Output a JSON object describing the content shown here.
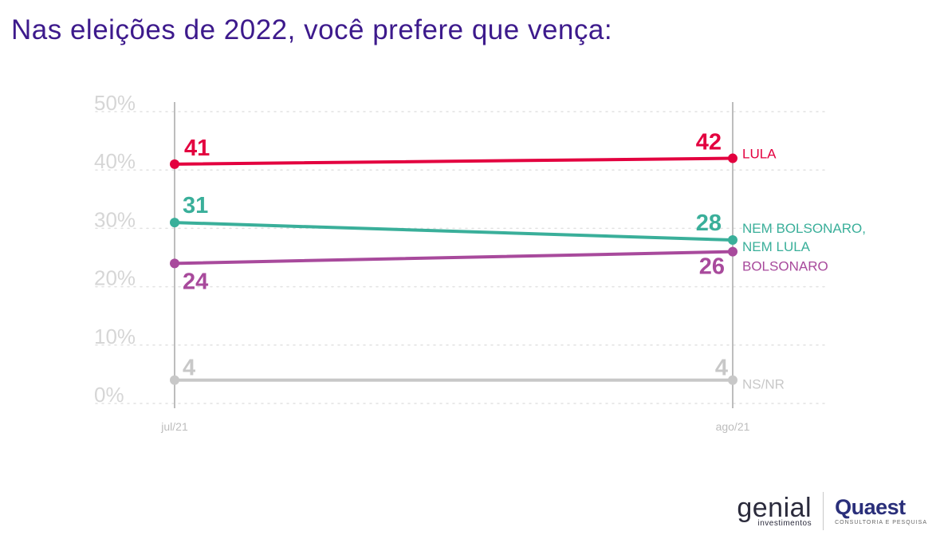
{
  "title": "Nas eleições de 2022, você prefere que vença:",
  "chart_data": {
    "type": "line",
    "categories": [
      "jul/21",
      "ago/21"
    ],
    "ylim": [
      0,
      50
    ],
    "yticks": [
      0,
      10,
      20,
      30,
      40,
      50
    ],
    "ytick_labels": [
      "0%",
      "10%",
      "20%",
      "30%",
      "40%",
      "50%"
    ],
    "grid": true,
    "series": [
      {
        "name": "LULA",
        "values": [
          41,
          42
        ],
        "color": "#e3003f",
        "labels": [
          "41",
          "42"
        ]
      },
      {
        "name": "NEM BOLSONARO, NEM LULA",
        "name_lines": [
          "NEM BOLSONARO,",
          "NEM LULA"
        ],
        "values": [
          31,
          28
        ],
        "color": "#3aaf9a",
        "labels": [
          "31",
          "28"
        ]
      },
      {
        "name": "BOLSONARO",
        "values": [
          24,
          26
        ],
        "color": "#a84a9c",
        "labels": [
          "24",
          "26"
        ]
      },
      {
        "name": "NS/NR",
        "values": [
          4,
          4
        ],
        "color": "#c8c8c8",
        "labels": [
          "4",
          "4"
        ]
      }
    ]
  },
  "logos": {
    "genial_word": "genial",
    "genial_sub": "investimentos",
    "quaest_word": "Quaest",
    "quaest_sub": "CONSULTORIA E PESQUISA"
  }
}
